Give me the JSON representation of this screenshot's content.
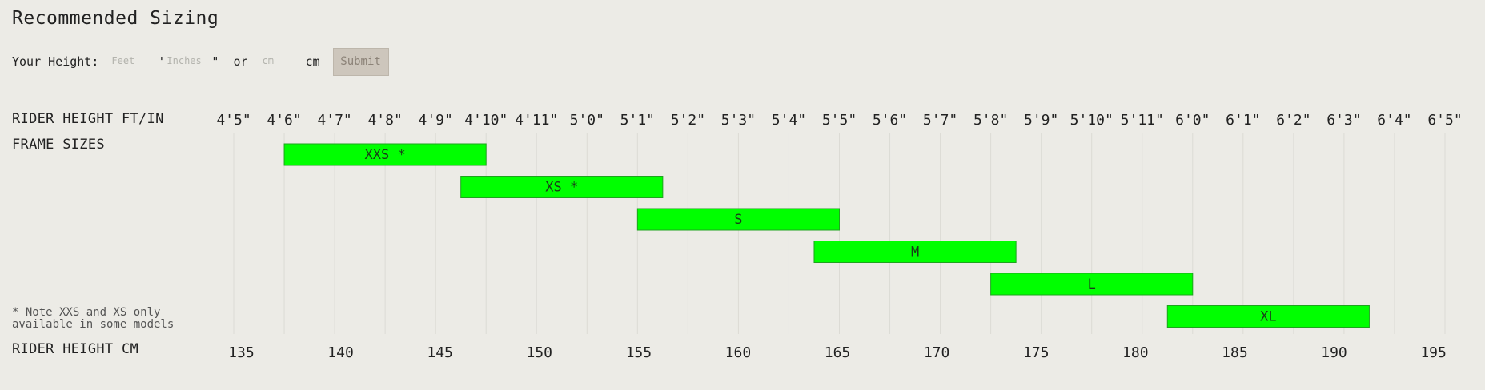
{
  "header": {
    "title": "Recommended Sizing"
  },
  "height_form": {
    "label": "Your Height:",
    "feet_placeholder": "Feet",
    "feet_mark": "'",
    "inches_placeholder": "Inches",
    "inches_mark": "\"",
    "or_text": "or",
    "cm_placeholder": "cm",
    "cm_unit": "cm",
    "submit_label": "Submit"
  },
  "labels": {
    "ftin_row": "RIDER HEIGHT FT/IN",
    "frame_sizes": "FRAME SIZES",
    "cm_row": "RIDER HEIGHT CM",
    "note_line1": "* Note XXS and XS only",
    "note_line2": "available in some models"
  },
  "colors": {
    "bar_fill": "#00ff00",
    "bar_stroke": "#1ea41e",
    "background": "#ecebe6"
  },
  "chart_data": {
    "type": "bar",
    "orientation": "horizontal-range",
    "ftin_ticks": [
      "4'5\"",
      "4'6\"",
      "4'7\"",
      "4'8\"",
      "4'9\"",
      "4'10\"",
      "4'11\"",
      "5'0\"",
      "5'1\"",
      "5'2\"",
      "5'3\"",
      "5'4\"",
      "5'5\"",
      "5'6\"",
      "5'7\"",
      "5'8\"",
      "5'9\"",
      "5'10\"",
      "5'11\"",
      "6'0\"",
      "6'1\"",
      "6'2\"",
      "6'3\"",
      "6'4\"",
      "6'5\""
    ],
    "ftin_range_inches": [
      53,
      77
    ],
    "cm_ticks": [
      135,
      140,
      145,
      150,
      155,
      160,
      165,
      170,
      175,
      180,
      185,
      190,
      195
    ],
    "sizes": [
      {
        "label": "XXS *",
        "start_in": 54,
        "end_in": 58
      },
      {
        "label": "XS *",
        "start_in": 57.5,
        "end_in": 61.5
      },
      {
        "label": "S",
        "start_in": 61,
        "end_in": 65
      },
      {
        "label": "M",
        "start_in": 64.5,
        "end_in": 68.5
      },
      {
        "label": "L",
        "start_in": 68,
        "end_in": 72
      },
      {
        "label": "XL",
        "start_in": 71.5,
        "end_in": 75.5
      }
    ]
  }
}
